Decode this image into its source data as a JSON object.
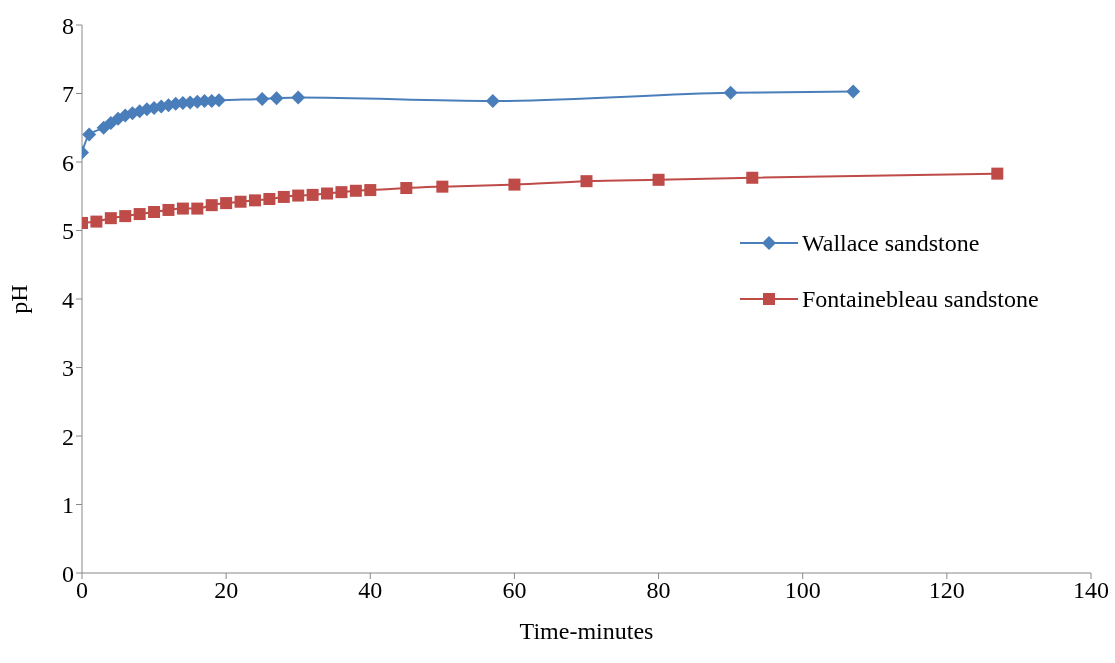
{
  "chart_data": {
    "type": "line",
    "xlabel": "Time-minutes",
    "ylabel": "pH",
    "xlim": [
      0,
      140
    ],
    "xticks": [
      0,
      20,
      40,
      60,
      80,
      100,
      120,
      140
    ],
    "ylim": [
      0,
      8
    ],
    "yticks": [
      0,
      1,
      2,
      3,
      4,
      5,
      6,
      7,
      8
    ],
    "grid": false,
    "legend": "right",
    "series": [
      {
        "name": "Wallace sandstone",
        "color": "#4a7ebb",
        "marker": "diamond",
        "x": [
          0,
          1,
          3,
          4,
          5,
          6,
          7,
          8,
          9,
          10,
          11,
          12,
          13,
          14,
          15,
          16,
          17,
          18,
          19,
          25,
          27,
          30,
          57,
          90,
          107
        ],
        "values": [
          6.14,
          6.4,
          6.5,
          6.57,
          6.63,
          6.68,
          6.71,
          6.74,
          6.77,
          6.79,
          6.81,
          6.83,
          6.85,
          6.86,
          6.87,
          6.88,
          6.89,
          6.89,
          6.9,
          6.92,
          6.93,
          6.94,
          6.89,
          7.01,
          7.03
        ]
      },
      {
        "name": "Fontainebleau sandstone",
        "color": "#be4b48",
        "marker": "square",
        "x": [
          0,
          2,
          4,
          6,
          8,
          10,
          12,
          14,
          16,
          18,
          20,
          22,
          24,
          26,
          28,
          30,
          32,
          34,
          36,
          38,
          40,
          45,
          50,
          60,
          70,
          80,
          93,
          127
        ],
        "values": [
          5.11,
          5.13,
          5.18,
          5.21,
          5.24,
          5.27,
          5.3,
          5.32,
          5.32,
          5.37,
          5.4,
          5.42,
          5.44,
          5.46,
          5.49,
          5.51,
          5.52,
          5.54,
          5.56,
          5.58,
          5.59,
          5.62,
          5.64,
          5.67,
          5.72,
          5.74,
          5.77,
          5.83
        ]
      }
    ]
  }
}
